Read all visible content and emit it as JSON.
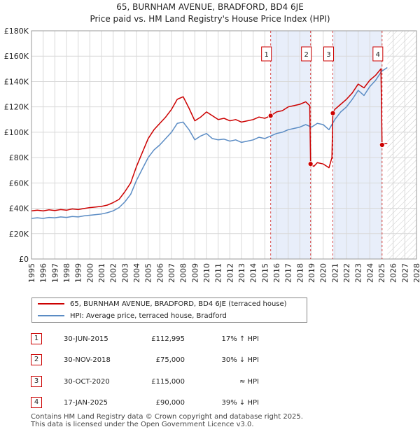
{
  "chart_data": {
    "type": "line",
    "title": "65, BURNHAM AVENUE, BRADFORD, BD4 6JE",
    "subtitle": "Price paid vs. HM Land Registry's House Price Index (HPI)",
    "xlim": [
      1995,
      2028
    ],
    "ylim": [
      0,
      180000
    ],
    "y_ticks": [
      0,
      20000,
      40000,
      60000,
      80000,
      100000,
      120000,
      140000,
      160000,
      180000
    ],
    "y_tick_labels": [
      "£0",
      "£20K",
      "£40K",
      "£60K",
      "£80K",
      "£100K",
      "£120K",
      "£140K",
      "£160K",
      "£180K"
    ],
    "x_ticks": [
      1995,
      1996,
      1997,
      1998,
      1999,
      2000,
      2001,
      2002,
      2003,
      2004,
      2005,
      2006,
      2007,
      2008,
      2009,
      2010,
      2011,
      2012,
      2013,
      2014,
      2015,
      2016,
      2017,
      2018,
      2019,
      2020,
      2021,
      2022,
      2023,
      2024,
      2025,
      2026,
      2027,
      2028
    ],
    "x_tick_labels": [
      "1995",
      "1996",
      "1997",
      "1998",
      "1999",
      "2000",
      "2001",
      "2002",
      "2003",
      "2004",
      "2005",
      "2006",
      "2007",
      "2008",
      "2009",
      "2010",
      "2011",
      "2012",
      "2013",
      "2014",
      "2015",
      "2016",
      "2017",
      "2018",
      "2019",
      "2020",
      "2021",
      "2022",
      "2023",
      "2024",
      "2025",
      "2026",
      "2027",
      "2028"
    ],
    "shaded_periods": [
      [
        2015.5,
        2018.92
      ],
      [
        2020.83,
        2025.05
      ]
    ],
    "forecast_start": 2025.5,
    "series": [
      {
        "name": "65, BURNHAM AVENUE, BRADFORD, BD4 6JE (terraced house)",
        "color": "#cc0000",
        "x": [
          1995.0,
          1995.5,
          1996.0,
          1996.5,
          1997.0,
          1997.5,
          1998.0,
          1998.5,
          1999.0,
          1999.5,
          2000.0,
          2000.5,
          2001.0,
          2001.5,
          2002.0,
          2002.5,
          2003.0,
          2003.5,
          2004.0,
          2004.5,
          2005.0,
          2005.5,
          2006.0,
          2006.5,
          2007.0,
          2007.5,
          2008.0,
          2008.5,
          2009.0,
          2009.5,
          2010.0,
          2010.5,
          2011.0,
          2011.5,
          2012.0,
          2012.5,
          2013.0,
          2013.5,
          2014.0,
          2014.5,
          2015.0,
          2015.5,
          2016.0,
          2016.5,
          2017.0,
          2017.5,
          2018.0,
          2018.5,
          2018.85,
          2018.92,
          2019.2,
          2019.5,
          2020.0,
          2020.5,
          2020.75,
          2020.83,
          2021.0,
          2021.5,
          2022.0,
          2022.5,
          2023.0,
          2023.5,
          2024.0,
          2024.5,
          2024.95,
          2025.05,
          2025.3,
          2025.5
        ],
        "values": [
          38000,
          38500,
          38000,
          38800,
          38200,
          39000,
          38500,
          39500,
          39000,
          39800,
          40500,
          41000,
          41500,
          42500,
          44500,
          47000,
          53000,
          60000,
          73000,
          84000,
          95000,
          102000,
          107000,
          112000,
          118000,
          126000,
          128000,
          119000,
          109000,
          112000,
          116000,
          113000,
          110000,
          111000,
          109000,
          110000,
          108000,
          109000,
          110000,
          112000,
          111000,
          112995,
          116000,
          117000,
          120000,
          121000,
          122000,
          124000,
          121000,
          75000,
          73000,
          76000,
          75000,
          72000,
          80000,
          115000,
          118000,
          122000,
          126000,
          131000,
          138000,
          135000,
          141000,
          145000,
          150000,
          90000,
          91000,
          91000
        ]
      },
      {
        "name": "HPI: Average price, terraced house, Bradford",
        "color": "#5b8cc4",
        "x": [
          1995.0,
          1995.5,
          1996.0,
          1996.5,
          1997.0,
          1997.5,
          1998.0,
          1998.5,
          1999.0,
          1999.5,
          2000.0,
          2000.5,
          2001.0,
          2001.5,
          2002.0,
          2002.5,
          2003.0,
          2003.5,
          2004.0,
          2004.5,
          2005.0,
          2005.5,
          2006.0,
          2006.5,
          2007.0,
          2007.5,
          2008.0,
          2008.5,
          2009.0,
          2009.5,
          2010.0,
          2010.5,
          2011.0,
          2011.5,
          2012.0,
          2012.5,
          2013.0,
          2013.5,
          2014.0,
          2014.5,
          2015.0,
          2015.5,
          2016.0,
          2016.5,
          2017.0,
          2017.5,
          2018.0,
          2018.5,
          2019.0,
          2019.5,
          2020.0,
          2020.5,
          2021.0,
          2021.5,
          2022.0,
          2022.5,
          2023.0,
          2023.5,
          2024.0,
          2024.5,
          2025.0,
          2025.5
        ],
        "values": [
          32000,
          32500,
          32000,
          32800,
          32500,
          33200,
          32800,
          33500,
          33200,
          34000,
          34500,
          35000,
          35500,
          36500,
          38000,
          40500,
          45000,
          51000,
          62000,
          71000,
          80000,
          86000,
          90000,
          95000,
          100000,
          107000,
          108000,
          102000,
          94000,
          97000,
          99000,
          95000,
          94000,
          94500,
          93000,
          94000,
          92000,
          93000,
          94000,
          96000,
          95000,
          97000,
          99000,
          100000,
          102000,
          103000,
          104000,
          106000,
          104000,
          107000,
          106000,
          102000,
          110000,
          116000,
          120000,
          126000,
          133000,
          129000,
          136000,
          141000,
          148000,
          151000
        ]
      }
    ],
    "sales": [
      {
        "label": "1",
        "x": 2015.5,
        "y": 112995
      },
      {
        "label": "2",
        "x": 2018.92,
        "y": 75000
      },
      {
        "label": "3",
        "x": 2020.83,
        "y": 115000
      },
      {
        "label": "4",
        "x": 2025.05,
        "y": 90000
      }
    ]
  },
  "legend": {
    "property_label": "65, BURNHAM AVENUE, BRADFORD, BD4 6JE (terraced house)",
    "hpi_label": "HPI: Average price, terraced house, Bradford"
  },
  "transactions": [
    {
      "num": "1",
      "date": "30-JUN-2015",
      "price": "£112,995",
      "hpi": "17% ↑ HPI"
    },
    {
      "num": "2",
      "date": "30-NOV-2018",
      "price": "£75,000",
      "hpi": "30% ↓ HPI"
    },
    {
      "num": "3",
      "date": "30-OCT-2020",
      "price": "£115,000",
      "hpi": "≈ HPI"
    },
    {
      "num": "4",
      "date": "17-JAN-2025",
      "price": "£90,000",
      "hpi": "39% ↓ HPI"
    }
  ],
  "footer": {
    "line1": "Contains HM Land Registry data © Crown copyright and database right 2025.",
    "line2": "This data is licensed under the Open Government Licence v3.0."
  },
  "colors": {
    "property": "#cc0000",
    "hpi": "#5b8cc4",
    "shade": "#e8eefa",
    "grid": "#d9d9d9"
  }
}
